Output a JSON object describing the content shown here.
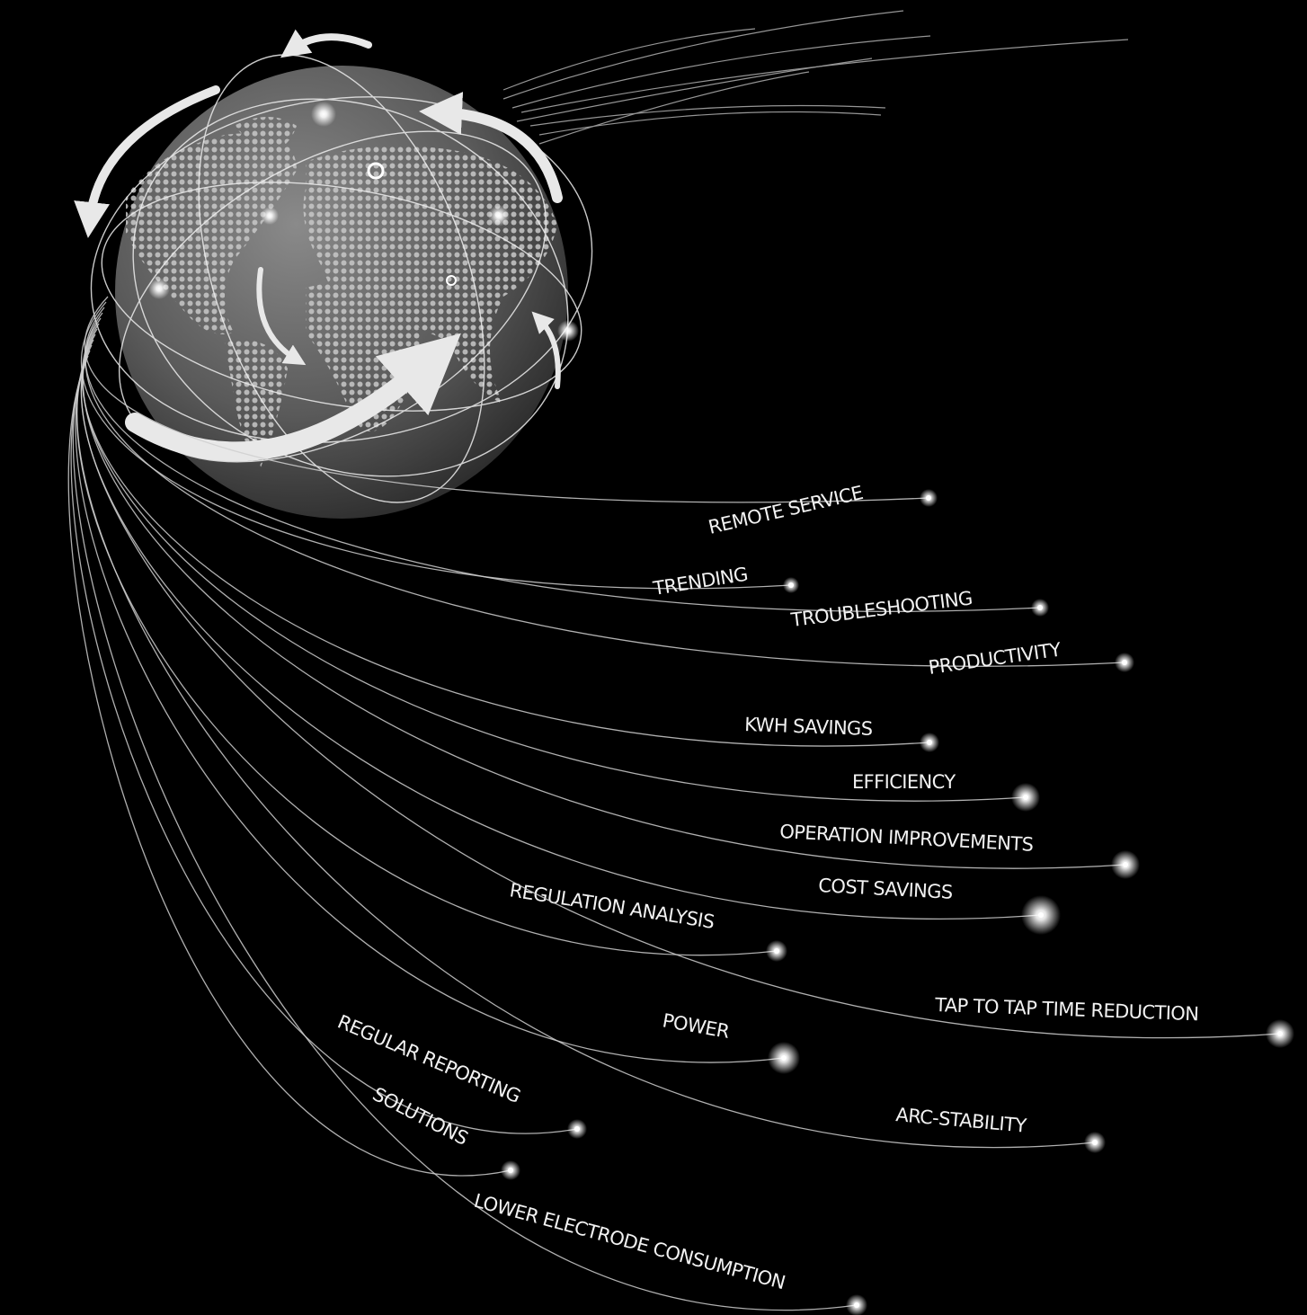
{
  "labels": [
    "REMOTE SERVICE",
    "TRENDING",
    "TROUBLESHOOTING",
    "PRODUCTIVITY",
    "KWH SAVINGS",
    "EFFICIENCY",
    "OPERATION IMPROVEMENTS",
    "COST SAVINGS",
    "REGULATION ANALYSIS",
    "TAP TO TAP TIME REDUCTION",
    "POWER",
    "REGULAR REPORTING",
    "ARC-STABILITY",
    "SOLUTIONS",
    "LOWER ELECTRODE CONSUMPTION"
  ]
}
